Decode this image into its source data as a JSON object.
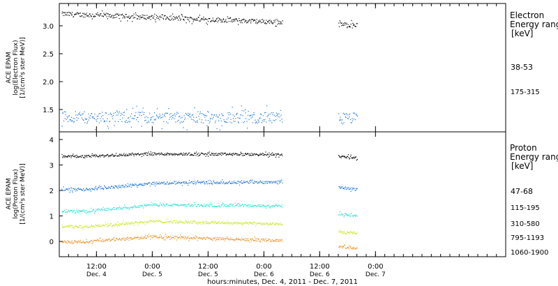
{
  "colors": {
    "axis": "#000000",
    "series": [
      "#000000",
      "#1a73d9",
      "#27e0d4",
      "#c8e61a",
      "#f08c1e"
    ]
  },
  "x_axis": {
    "title": "hours:minutes, Dec.  4, 2011 - Dec.  7, 2011",
    "ticks": [
      {
        "time": "12:00",
        "day": "Dec. 4"
      },
      {
        "time": "0:00",
        "day": "Dec. 5"
      },
      {
        "time": "12:00",
        "day": "Dec. 5"
      },
      {
        "time": "0:00",
        "day": "Dec. 6"
      },
      {
        "time": "12:00",
        "day": "Dec. 6"
      },
      {
        "time": "0:00",
        "day": "Dec. 7"
      }
    ]
  },
  "chart_data": [
    {
      "type": "scatter",
      "ylabel": [
        "ACE EPAM",
        "log(Electron Flux)",
        "[1/(cm²s ster MeV)]"
      ],
      "ylim": [
        1.1,
        3.4
      ],
      "yticks": [
        "1.5",
        "2.0",
        "2.5",
        "3.0"
      ],
      "yticks_values": [
        1.5,
        2.0,
        2.5,
        3.0
      ],
      "xlim_hours": [
        0,
        96
      ],
      "legend_title": [
        "Electron",
        "Energy ranges",
        "[keV]"
      ],
      "data_gap_hours": [
        48,
        60
      ],
      "series": [
        {
          "name": "38-53",
          "level_start": 3.22,
          "level_end": 3.02,
          "scatter": 0.04
        },
        {
          "name": "175-315",
          "level_start": 1.37,
          "level_end": 1.35,
          "scatter": 0.1
        }
      ]
    },
    {
      "type": "scatter",
      "ylabel": [
        "ACE EPAM",
        "log(Proton Flux)",
        "[1/(cm²s ster MeV)]"
      ],
      "ylim": [
        -0.6,
        4.3
      ],
      "yticks": [
        "0",
        "1",
        "2",
        "3",
        "4"
      ],
      "yticks_values": [
        0,
        1,
        2,
        3,
        4
      ],
      "xlim_hours": [
        0,
        96
      ],
      "legend_title": [
        "Proton",
        "Energy ranges",
        "[keV]"
      ],
      "data_gap_hours": [
        48,
        60
      ],
      "series": [
        {
          "name": "47-68",
          "levels": [
            [
              6,
              3.35
            ],
            [
              20,
              3.45
            ],
            [
              48,
              3.42
            ],
            [
              60,
              3.35
            ],
            [
              64,
              3.3
            ]
          ]
        },
        {
          "name": "115-195",
          "levels": [
            [
              6,
              2.05
            ],
            [
              20,
              2.3
            ],
            [
              48,
              2.35
            ],
            [
              60,
              2.15
            ],
            [
              64,
              2.05
            ]
          ]
        },
        {
          "name": "310-580",
          "levels": [
            [
              6,
              1.2
            ],
            [
              20,
              1.45
            ],
            [
              48,
              1.4
            ],
            [
              60,
              1.1
            ],
            [
              64,
              1.0
            ]
          ]
        },
        {
          "name": "795-1193",
          "levels": [
            [
              6,
              0.6
            ],
            [
              20,
              0.8
            ],
            [
              48,
              0.7
            ],
            [
              60,
              0.35
            ],
            [
              64,
              0.35
            ]
          ]
        },
        {
          "name": "1060-1900",
          "levels": [
            [
              6,
              0.0
            ],
            [
              20,
              0.2
            ],
            [
              48,
              0.05
            ],
            [
              60,
              -0.2
            ],
            [
              64,
              -0.25
            ]
          ]
        }
      ]
    }
  ]
}
